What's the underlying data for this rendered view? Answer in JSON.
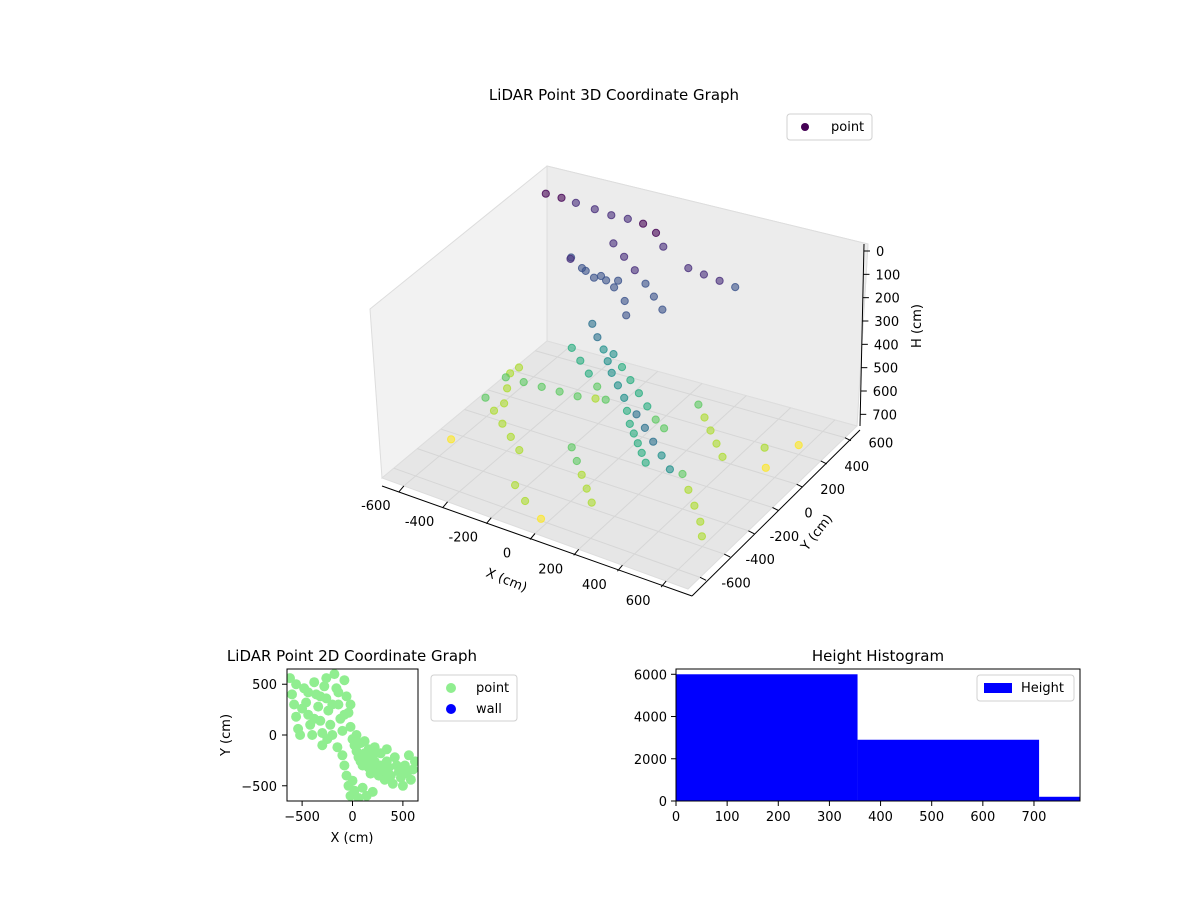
{
  "chart_data": [
    {
      "type": "scatter",
      "projection": "3d",
      "title": "LiDAR Point 3D Coordinate Graph",
      "xlabel": "X (cm)",
      "ylabel": "Y (cm)",
      "zlabel": "H (cm)",
      "xlim": [
        -700,
        700
      ],
      "ylim": [
        -700,
        700
      ],
      "zlim": [
        0,
        750
      ],
      "z_inverted": true,
      "xticks": [
        "-600",
        "-400",
        "-200",
        "0",
        "200",
        "400",
        "600"
      ],
      "yticks": [
        "-600",
        "-400",
        "-200",
        "0",
        "200",
        "400",
        "600"
      ],
      "zticks": [
        "0",
        "100",
        "200",
        "300",
        "400",
        "500",
        "600",
        "700"
      ],
      "colormap": "viridis",
      "legend": {
        "position": "top-right",
        "entries": [
          {
            "label": "point",
            "color": "#440154"
          }
        ]
      },
      "series": [
        {
          "name": "point",
          "points": [
            [
              -620,
              540,
              30
            ],
            [
              -560,
              560,
              40
            ],
            [
              -500,
              570,
              50
            ],
            [
              -420,
              580,
              60
            ],
            [
              -340,
              570,
              60
            ],
            [
              -260,
              560,
              50
            ],
            [
              -180,
              540,
              40
            ],
            [
              -100,
              500,
              40
            ],
            [
              -40,
              450,
              60
            ],
            [
              -420,
              380,
              180
            ],
            [
              -360,
              360,
              200
            ],
            [
              -300,
              350,
              220
            ],
            [
              -240,
              340,
              210
            ],
            [
              -180,
              330,
              190
            ],
            [
              -380,
              300,
              140
            ],
            [
              -300,
              280,
              160
            ],
            [
              -220,
              260,
              150
            ],
            [
              -150,
              240,
              170
            ],
            [
              -80,
              200,
              190
            ],
            [
              -30,
              120,
              200
            ],
            [
              -200,
              150,
              300
            ],
            [
              -150,
              100,
              320
            ],
            [
              -100,
              60,
              340
            ],
            [
              -60,
              20,
              360
            ],
            [
              -20,
              -20,
              380
            ],
            [
              30,
              -60,
              400
            ],
            [
              80,
              -100,
              420
            ],
            [
              120,
              -150,
              440
            ],
            [
              160,
              -200,
              460
            ],
            [
              200,
              -240,
              470
            ],
            [
              240,
              -280,
              480
            ],
            [
              280,
              -320,
              490
            ],
            [
              320,
              -360,
              500
            ],
            [
              -120,
              180,
              420
            ],
            [
              -60,
              140,
              440
            ],
            [
              0,
              100,
              460
            ],
            [
              60,
              60,
              480
            ],
            [
              120,
              20,
              500
            ],
            [
              180,
              -20,
              520
            ],
            [
              240,
              -60,
              520
            ],
            [
              -250,
              420,
              90
            ],
            [
              -180,
              380,
              110
            ],
            [
              -110,
              340,
              130
            ],
            [
              -40,
              300,
              150
            ],
            [
              20,
              260,
              170
            ],
            [
              80,
              220,
              190
            ],
            [
              -480,
              -60,
              520
            ],
            [
              -420,
              -20,
              540
            ],
            [
              -360,
              20,
              560
            ],
            [
              -300,
              60,
              580
            ],
            [
              -240,
              100,
              600
            ],
            [
              -180,
              140,
              610
            ],
            [
              -540,
              -120,
              600
            ],
            [
              -480,
              -160,
              620
            ],
            [
              -420,
              -200,
              640
            ],
            [
              -360,
              -240,
              660
            ],
            [
              -300,
              -280,
              680
            ],
            [
              -600,
              200,
              650
            ],
            [
              -560,
              100,
              660
            ],
            [
              -520,
              0,
              670
            ],
            [
              -640,
              350,
              700
            ],
            [
              -600,
              -300,
              720
            ],
            [
              200,
              300,
              600
            ],
            [
              260,
              240,
              610
            ],
            [
              320,
              180,
              620
            ],
            [
              380,
              120,
              630
            ],
            [
              440,
              60,
              640
            ],
            [
              300,
              -400,
              280
            ],
            [
              360,
              -440,
              300
            ],
            [
              420,
              -480,
              320
            ],
            [
              480,
              -520,
              340
            ],
            [
              540,
              -560,
              360
            ],
            [
              100,
              400,
              90
            ],
            [
              160,
              420,
              110
            ],
            [
              220,
              440,
              130
            ],
            [
              280,
              460,
              150
            ],
            [
              500,
              300,
              700
            ],
            [
              560,
              200,
              720
            ],
            [
              600,
              400,
              710
            ],
            [
              -200,
              -500,
              700
            ],
            [
              -100,
              -600,
              690
            ],
            [
              0,
              -650,
              710
            ],
            [
              400,
              -200,
              600
            ],
            [
              460,
              -260,
              620
            ],
            [
              520,
              -320,
              640
            ],
            [
              580,
              -380,
              660
            ],
            [
              620,
              -440,
              680
            ],
            [
              -50,
              -300,
              580
            ],
            [
              0,
              -350,
              600
            ],
            [
              50,
              -400,
              620
            ],
            [
              100,
              -450,
              640
            ],
            [
              150,
              -500,
              660
            ],
            [
              -320,
              200,
              460
            ],
            [
              -260,
              160,
              480
            ],
            [
              -200,
              120,
              500
            ],
            [
              -140,
              80,
              520
            ],
            [
              -80,
              40,
              540
            ]
          ]
        }
      ]
    },
    {
      "type": "scatter",
      "title": "LiDAR Point 2D Coordinate Graph",
      "xlabel": "X (cm)",
      "ylabel": "Y (cm)",
      "xlim": [
        -650,
        650
      ],
      "ylim": [
        -650,
        650
      ],
      "xticks": [
        "−500",
        "0",
        "500"
      ],
      "yticks": [
        "500",
        "0",
        "−500"
      ],
      "legend": {
        "position": "outside-right",
        "entries": [
          {
            "label": "point",
            "color": "#90ee90"
          },
          {
            "label": "wall",
            "color": "#0000ff"
          }
        ]
      },
      "series": [
        {
          "name": "point",
          "color": "#90ee90",
          "points": [
            [
              -620,
              560
            ],
            [
              -600,
              400
            ],
            [
              -580,
              300
            ],
            [
              -560,
              180
            ],
            [
              -540,
              60
            ],
            [
              -520,
              0
            ],
            [
              -480,
              460
            ],
            [
              -460,
              320
            ],
            [
              -440,
              200
            ],
            [
              -420,
              100
            ],
            [
              -400,
              0
            ],
            [
              -380,
              520
            ],
            [
              -360,
              400
            ],
            [
              -340,
              280
            ],
            [
              -320,
              140
            ],
            [
              -300,
              20
            ],
            [
              -280,
              480
            ],
            [
              -260,
              360
            ],
            [
              -240,
              240
            ],
            [
              -220,
              100
            ],
            [
              -200,
              0
            ],
            [
              -180,
              600
            ],
            [
              -160,
              460
            ],
            [
              -140,
              300
            ],
            [
              -120,
              160
            ],
            [
              -100,
              40
            ],
            [
              -80,
              540
            ],
            [
              -60,
              380
            ],
            [
              -40,
              220
            ],
            [
              -20,
              80
            ],
            [
              0,
              -40
            ],
            [
              20,
              -100
            ],
            [
              40,
              -160
            ],
            [
              60,
              -220
            ],
            [
              80,
              -260
            ],
            [
              100,
              -300
            ],
            [
              120,
              -180
            ],
            [
              140,
              -240
            ],
            [
              160,
              -320
            ],
            [
              180,
              -380
            ],
            [
              200,
              -200
            ],
            [
              220,
              -260
            ],
            [
              240,
              -340
            ],
            [
              260,
              -400
            ],
            [
              280,
              -300
            ],
            [
              300,
              -360
            ],
            [
              320,
              -440
            ],
            [
              340,
              -260
            ],
            [
              360,
              -320
            ],
            [
              380,
              -400
            ],
            [
              400,
              -480
            ],
            [
              420,
              -220
            ],
            [
              440,
              -300
            ],
            [
              460,
              -360
            ],
            [
              480,
              -420
            ],
            [
              500,
              -500
            ],
            [
              520,
              -300
            ],
            [
              540,
              -380
            ],
            [
              560,
              -200
            ],
            [
              580,
              -440
            ],
            [
              600,
              -340
            ],
            [
              620,
              -260
            ],
            [
              -100,
              -200
            ],
            [
              -80,
              -300
            ],
            [
              -60,
              -400
            ],
            [
              -40,
              -500
            ],
            [
              -20,
              -600
            ],
            [
              0,
              -450
            ],
            [
              20,
              -550
            ],
            [
              60,
              -620
            ],
            [
              100,
              -520
            ],
            [
              140,
              -600
            ],
            [
              200,
              -560
            ],
            [
              -300,
              -100
            ],
            [
              -250,
              -40
            ],
            [
              -150,
              -120
            ],
            [
              -560,
              500
            ],
            [
              -500,
              260
            ],
            [
              -440,
              420
            ],
            [
              -380,
              160
            ],
            [
              -320,
              380
            ],
            [
              -260,
              560
            ],
            [
              -200,
              300
            ],
            [
              -140,
              420
            ],
            [
              -80,
              200
            ],
            [
              -20,
              300
            ],
            [
              40,
              0
            ],
            [
              80,
              -80
            ],
            [
              120,
              -60
            ],
            [
              160,
              -140
            ],
            [
              220,
              -120
            ],
            [
              280,
              -180
            ],
            [
              340,
              -140
            ]
          ]
        },
        {
          "name": "wall",
          "color": "#0000ff",
          "points": []
        }
      ]
    },
    {
      "type": "bar",
      "subtype": "histogram",
      "title": "Height Histogram",
      "xlabel": "",
      "ylabel": "",
      "xlim": [
        0,
        790
      ],
      "ylim": [
        0,
        6250
      ],
      "xticks": [
        "0",
        "100",
        "200",
        "300",
        "400",
        "500",
        "600",
        "700"
      ],
      "yticks": [
        "0",
        "2000",
        "4000",
        "6000"
      ],
      "legend": {
        "position": "top-right",
        "entries": [
          {
            "label": "Height",
            "color": "#0000ff"
          }
        ]
      },
      "series": [
        {
          "name": "Height",
          "color": "#0000ff",
          "bins": [
            {
              "x0": 0,
              "x1": 355,
              "count": 6000
            },
            {
              "x0": 355,
              "x1": 710,
              "count": 2900
            },
            {
              "x0": 710,
              "x1": 790,
              "count": 200
            }
          ]
        }
      ]
    }
  ]
}
